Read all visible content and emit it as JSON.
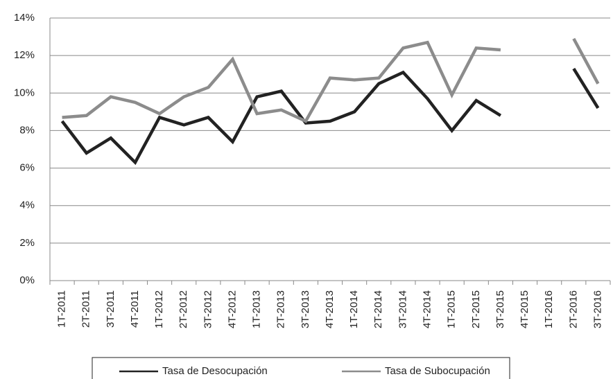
{
  "chart_data": {
    "type": "line",
    "categories": [
      "1T-2011",
      "2T-2011",
      "3T-2011",
      "4T-2011",
      "1T-2012",
      "2T-2012",
      "3T-2012",
      "4T-2012",
      "1T-2013",
      "2T-2013",
      "3T-2013",
      "4T-2013",
      "1T-2014",
      "2T-2014",
      "3T-2014",
      "4T-2014",
      "1T-2015",
      "2T-2015",
      "3T-2015",
      "4T-2015",
      "1T-2016",
      "2T-2016",
      "3T-2016"
    ],
    "series": [
      {
        "name": "Tasa de Desocupación",
        "color": "#222222",
        "values": [
          8.5,
          6.8,
          7.6,
          6.3,
          8.7,
          8.3,
          8.7,
          7.4,
          9.8,
          10.1,
          8.4,
          8.5,
          9.0,
          10.5,
          11.1,
          9.7,
          8.0,
          9.6,
          8.8,
          null,
          null,
          11.3,
          9.2
        ]
      },
      {
        "name": "Tasa de Subocupación",
        "color": "#8c8c8c",
        "values": [
          8.7,
          8.8,
          9.8,
          9.5,
          8.9,
          9.8,
          10.3,
          11.8,
          8.9,
          9.1,
          8.5,
          10.8,
          10.7,
          10.8,
          12.4,
          12.7,
          9.9,
          12.4,
          12.3,
          null,
          null,
          12.9,
          10.5
        ]
      }
    ],
    "ylim": [
      0,
      14
    ],
    "yticks": [
      {
        "value": 0,
        "label": "0%"
      },
      {
        "value": 2,
        "label": "2%"
      },
      {
        "value": 4,
        "label": "4%"
      },
      {
        "value": 6,
        "label": "6%"
      },
      {
        "value": 8,
        "label": "8%"
      },
      {
        "value": 10,
        "label": "10%"
      },
      {
        "value": 12,
        "label": "12%"
      },
      {
        "value": 14,
        "label": "14%"
      }
    ],
    "grid": true
  }
}
